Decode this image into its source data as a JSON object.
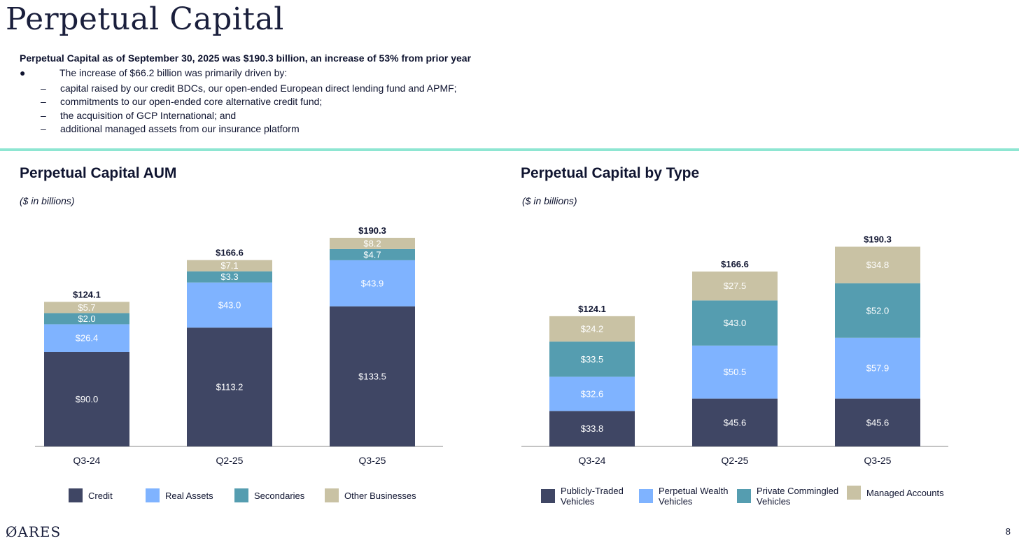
{
  "page": {
    "title": "Perpetual Capital",
    "headline": "Perpetual Capital as of September 30, 2025 was $190.3 billion, an increase of 53% from prior year",
    "bullet": "The increase of $66.2 billion was primarily driven by:",
    "bullet_marker": "●",
    "dash": "–",
    "sub_bullets": [
      "capital raised by our credit BDCs, our open-ended European direct lending fund and APMF;",
      "commitments to our open-ended core alternative credit fund;",
      "the acquisition of GCP International; and",
      "additional managed assets from our insurance platform"
    ],
    "logo": "ARES",
    "page_number": "8"
  },
  "colors": {
    "dark": "#3f4664",
    "light_blue": "#7fb3ff",
    "teal": "#559db0",
    "tan": "#c9c2a4",
    "accent_rule": "#8ee6d2"
  },
  "chart_data": [
    {
      "type": "bar",
      "stacked": true,
      "title": "Perpetual Capital AUM",
      "subtitle": "($ in billions)",
      "categories": [
        "Q3-24",
        "Q2-25",
        "Q3-25"
      ],
      "totals": [
        "$124.1",
        "$166.6",
        "$190.3"
      ],
      "series": [
        {
          "name": "Credit",
          "color": "#3f4664",
          "values": [
            90.0,
            113.2,
            133.5
          ]
        },
        {
          "name": "Real Assets",
          "color": "#7fb3ff",
          "values": [
            26.4,
            43.0,
            43.9
          ]
        },
        {
          "name": "Secondaries",
          "color": "#559db0",
          "values": [
            2.0,
            3.3,
            4.7
          ]
        },
        {
          "name": "Other Businesses",
          "color": "#c9c2a4",
          "values": [
            5.7,
            7.1,
            8.2
          ]
        }
      ],
      "legend": "bottom"
    },
    {
      "type": "bar",
      "stacked": true,
      "title": "Perpetual Capital by Type",
      "subtitle": "($ in billions)",
      "categories": [
        "Q3-24",
        "Q2-25",
        "Q3-25"
      ],
      "totals": [
        "$124.1",
        "$166.6",
        "$190.3"
      ],
      "series": [
        {
          "name": "Publicly-Traded Vehicles",
          "color": "#3f4664",
          "values": [
            33.8,
            45.6,
            45.6
          ]
        },
        {
          "name": "Perpetual Wealth Vehicles",
          "color": "#7fb3ff",
          "values": [
            32.6,
            50.5,
            57.9
          ]
        },
        {
          "name": "Private Commingled Vehicles",
          "color": "#559db0",
          "values": [
            33.5,
            43.0,
            52.0
          ]
        },
        {
          "name": "Managed Accounts",
          "color": "#c9c2a4",
          "values": [
            24.2,
            27.5,
            34.8
          ]
        }
      ],
      "legend": "bottom"
    }
  ]
}
